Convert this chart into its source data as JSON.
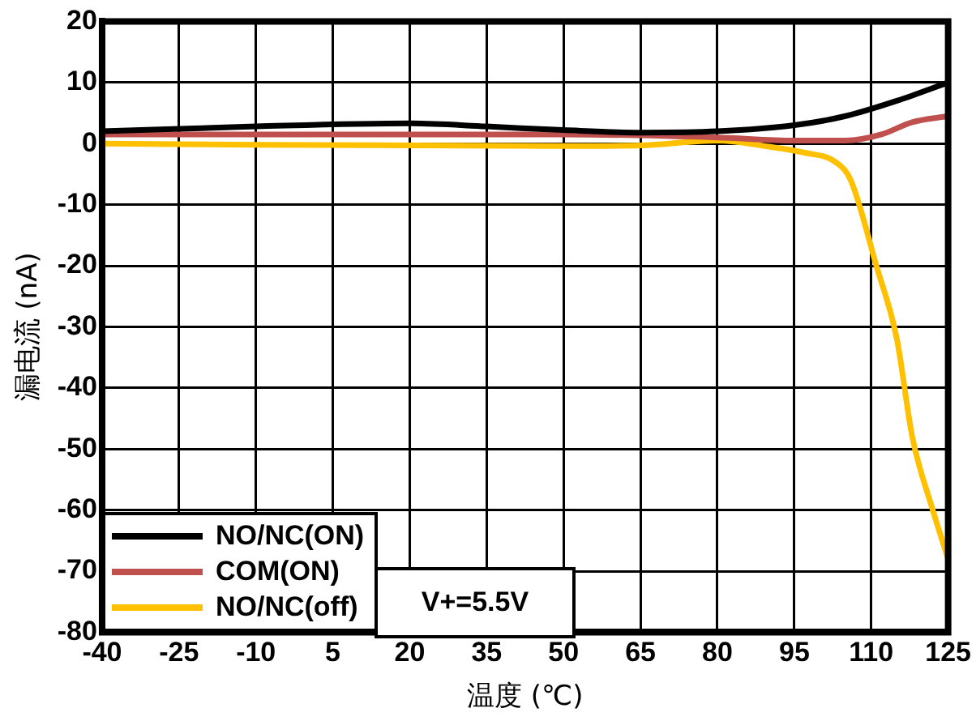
{
  "chart_data": {
    "type": "line",
    "xlabel": "温度 (℃)",
    "ylabel": "漏电流 (nA)",
    "xlim": [
      -40,
      125
    ],
    "xticks": [
      -40,
      -25,
      -10,
      5,
      20,
      35,
      50,
      65,
      80,
      95,
      110,
      125
    ],
    "ylim": [
      -80,
      20
    ],
    "yticks": [
      -80,
      -70,
      -60,
      -50,
      -40,
      -30,
      -20,
      -10,
      0,
      10,
      20
    ],
    "grid": true,
    "legend": "bottom left",
    "marker": "none",
    "line_style": "solid",
    "annotations": [
      "V+=5.5V"
    ],
    "series": [
      {
        "name": "NO/NC(ON)",
        "color": "#000000",
        "x": [
          -40,
          -10,
          20,
          35,
          50,
          65,
          80,
          95,
          105,
          115,
          125
        ],
        "values": [
          2,
          2.8,
          3.3,
          2.8,
          2.2,
          1.8,
          2,
          3,
          4.5,
          7,
          10
        ]
      },
      {
        "name": "COM(ON)",
        "color": "#c0504d",
        "x": [
          -40,
          -10,
          20,
          50,
          80,
          95,
          105,
          112,
          118,
          125
        ],
        "values": [
          1.5,
          1.5,
          1.5,
          1.5,
          1,
          0.5,
          0.5,
          1.5,
          3.5,
          4.5
        ]
      },
      {
        "name": "NO/NC(off)",
        "color": "#ffc000",
        "x": [
          -40,
          -10,
          20,
          50,
          65,
          80,
          90,
          97,
          103,
          106,
          111,
          115,
          118,
          122,
          125
        ],
        "values": [
          0,
          -0.2,
          -0.3,
          -0.4,
          -0.3,
          0.5,
          -0.5,
          -1.5,
          -3,
          -6,
          -20,
          -32,
          -48,
          -60,
          -68
        ]
      }
    ]
  }
}
